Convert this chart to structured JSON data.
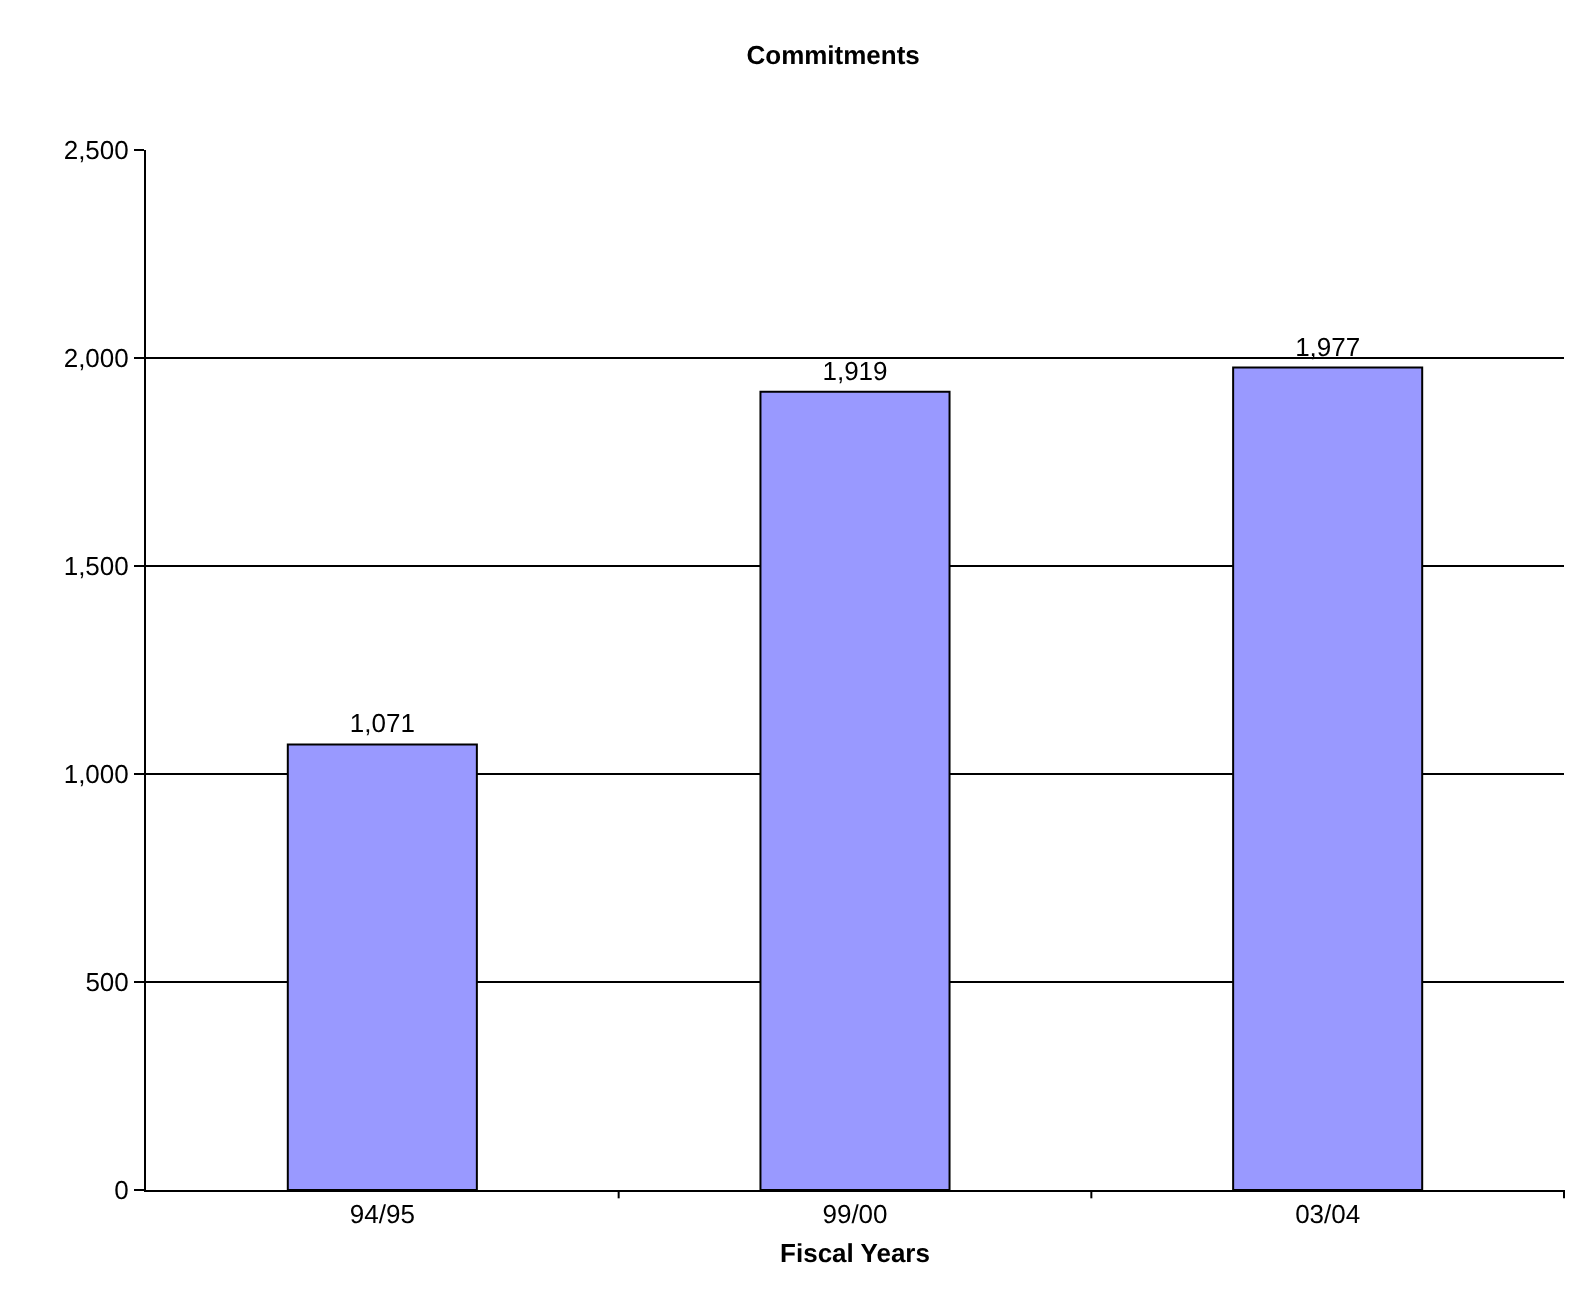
{
  "chart_data": {
    "type": "bar",
    "title": "Commitments",
    "xlabel": "Fiscal Years",
    "categories": [
      "94/95",
      "99/00",
      "03/04"
    ],
    "values": [
      1071,
      1919,
      1977
    ],
    "value_labels": [
      "1,071",
      "1,919",
      "1,977"
    ],
    "color": "#9999ff",
    "ylim": [
      0,
      2500
    ],
    "yticks": [
      {
        "value": 0,
        "label": "0"
      },
      {
        "value": 500,
        "label": "500"
      },
      {
        "value": 1000,
        "label": "1,000"
      },
      {
        "value": 1500,
        "label": "1,500"
      },
      {
        "value": 2000,
        "label": "2,000"
      },
      {
        "value": 2500,
        "label": "2,500"
      }
    ],
    "grid": "y"
  }
}
